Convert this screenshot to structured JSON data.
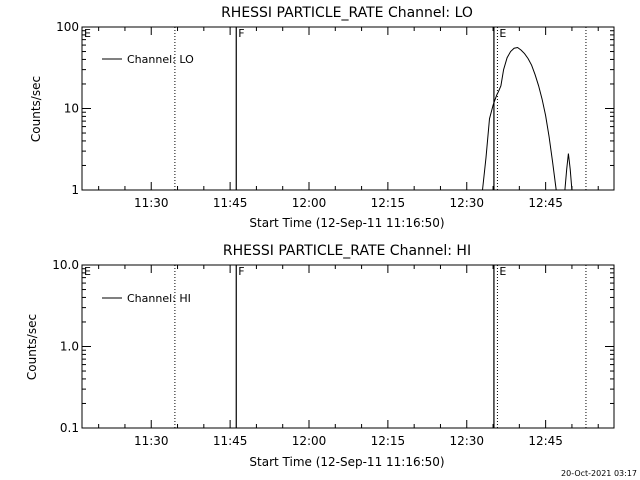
{
  "chart_data": [
    {
      "type": "line",
      "title": "RHESSI PARTICLE_RATE Channel: LO",
      "xlabel": "Start Time (12-Sep-11 11:16:50)",
      "ylabel": "Counts/sec",
      "yscale": "log",
      "ylim": [
        1,
        100
      ],
      "xlim": [
        "11:16:50",
        "12:58:00"
      ],
      "ytick_labels": [
        "1",
        "10",
        "100"
      ],
      "xtick_labels": [
        "11:30",
        "11:45",
        "12:00",
        "12:15",
        "12:30",
        "12:45"
      ],
      "legend": {
        "placement": "top-left",
        "entries": [
          "Channel: LO"
        ]
      },
      "series": [
        {
          "name": "Channel: LO",
          "x": [
            "12:33:00",
            "12:33:40",
            "12:34:20",
            "12:35:00",
            "12:35:40",
            "12:36:00",
            "12:36:30",
            "12:37:00",
            "12:37:40",
            "12:38:20",
            "12:39:00",
            "12:39:40",
            "12:40:20",
            "12:41:00",
            "12:41:40",
            "12:42:20",
            "12:43:00",
            "12:43:40",
            "12:44:20",
            "12:45:00",
            "12:45:40",
            "12:46:20",
            "12:47:00",
            "12:47:40",
            "12:48:20",
            "12:48:40",
            "12:49:00",
            "12:49:20",
            "12:49:40",
            "12:50:00",
            "12:50:20"
          ],
          "y": [
            1.0,
            2.5,
            7.5,
            11.0,
            14.5,
            16.0,
            19.0,
            30.0,
            42.0,
            50.0,
            55.0,
            56.0,
            52.0,
            47.0,
            41.0,
            34.0,
            26.0,
            19.0,
            13.0,
            8.2,
            4.5,
            2.2,
            1.0,
            null,
            null,
            1.0,
            1.8,
            2.8,
            1.8,
            1.0,
            null
          ]
        }
      ],
      "annotations": [
        {
          "label": "E",
          "time": "11:16:50",
          "style": "marker"
        },
        {
          "label": "",
          "time": "11:34:30",
          "style": "dotted"
        },
        {
          "label": "F",
          "time": "11:46:10",
          "style": "solid"
        },
        {
          "label": "",
          "time": "12:35:10",
          "style": "solid"
        },
        {
          "label": "E",
          "time": "12:35:50",
          "style": "dotted"
        },
        {
          "label": "",
          "time": "12:52:40",
          "style": "dotted"
        }
      ]
    },
    {
      "type": "line",
      "title": "RHESSI PARTICLE_RATE Channel: HI",
      "xlabel": "Start Time (12-Sep-11 11:16:50)",
      "ylabel": "Counts/sec",
      "yscale": "log",
      "ylim": [
        0.1,
        10
      ],
      "xlim": [
        "11:16:50",
        "12:58:00"
      ],
      "ytick_labels": [
        "0.1",
        "1.0",
        "10.0"
      ],
      "xtick_labels": [
        "11:30",
        "11:45",
        "12:00",
        "12:15",
        "12:30",
        "12:45"
      ],
      "legend": {
        "placement": "top-left",
        "entries": [
          "Channel: HI"
        ]
      },
      "series": [
        {
          "name": "Channel: HI",
          "x": [],
          "y": []
        }
      ],
      "annotations": [
        {
          "label": "E",
          "time": "11:16:50",
          "style": "marker"
        },
        {
          "label": "",
          "time": "11:34:30",
          "style": "dotted"
        },
        {
          "label": "F",
          "time": "11:46:10",
          "style": "solid"
        },
        {
          "label": "",
          "time": "12:35:10",
          "style": "solid"
        },
        {
          "label": "E",
          "time": "12:35:50",
          "style": "dotted"
        },
        {
          "label": "",
          "time": "12:52:40",
          "style": "dotted"
        }
      ]
    }
  ],
  "footer": {
    "timestamp": "20-Oct-2021 03:17"
  }
}
